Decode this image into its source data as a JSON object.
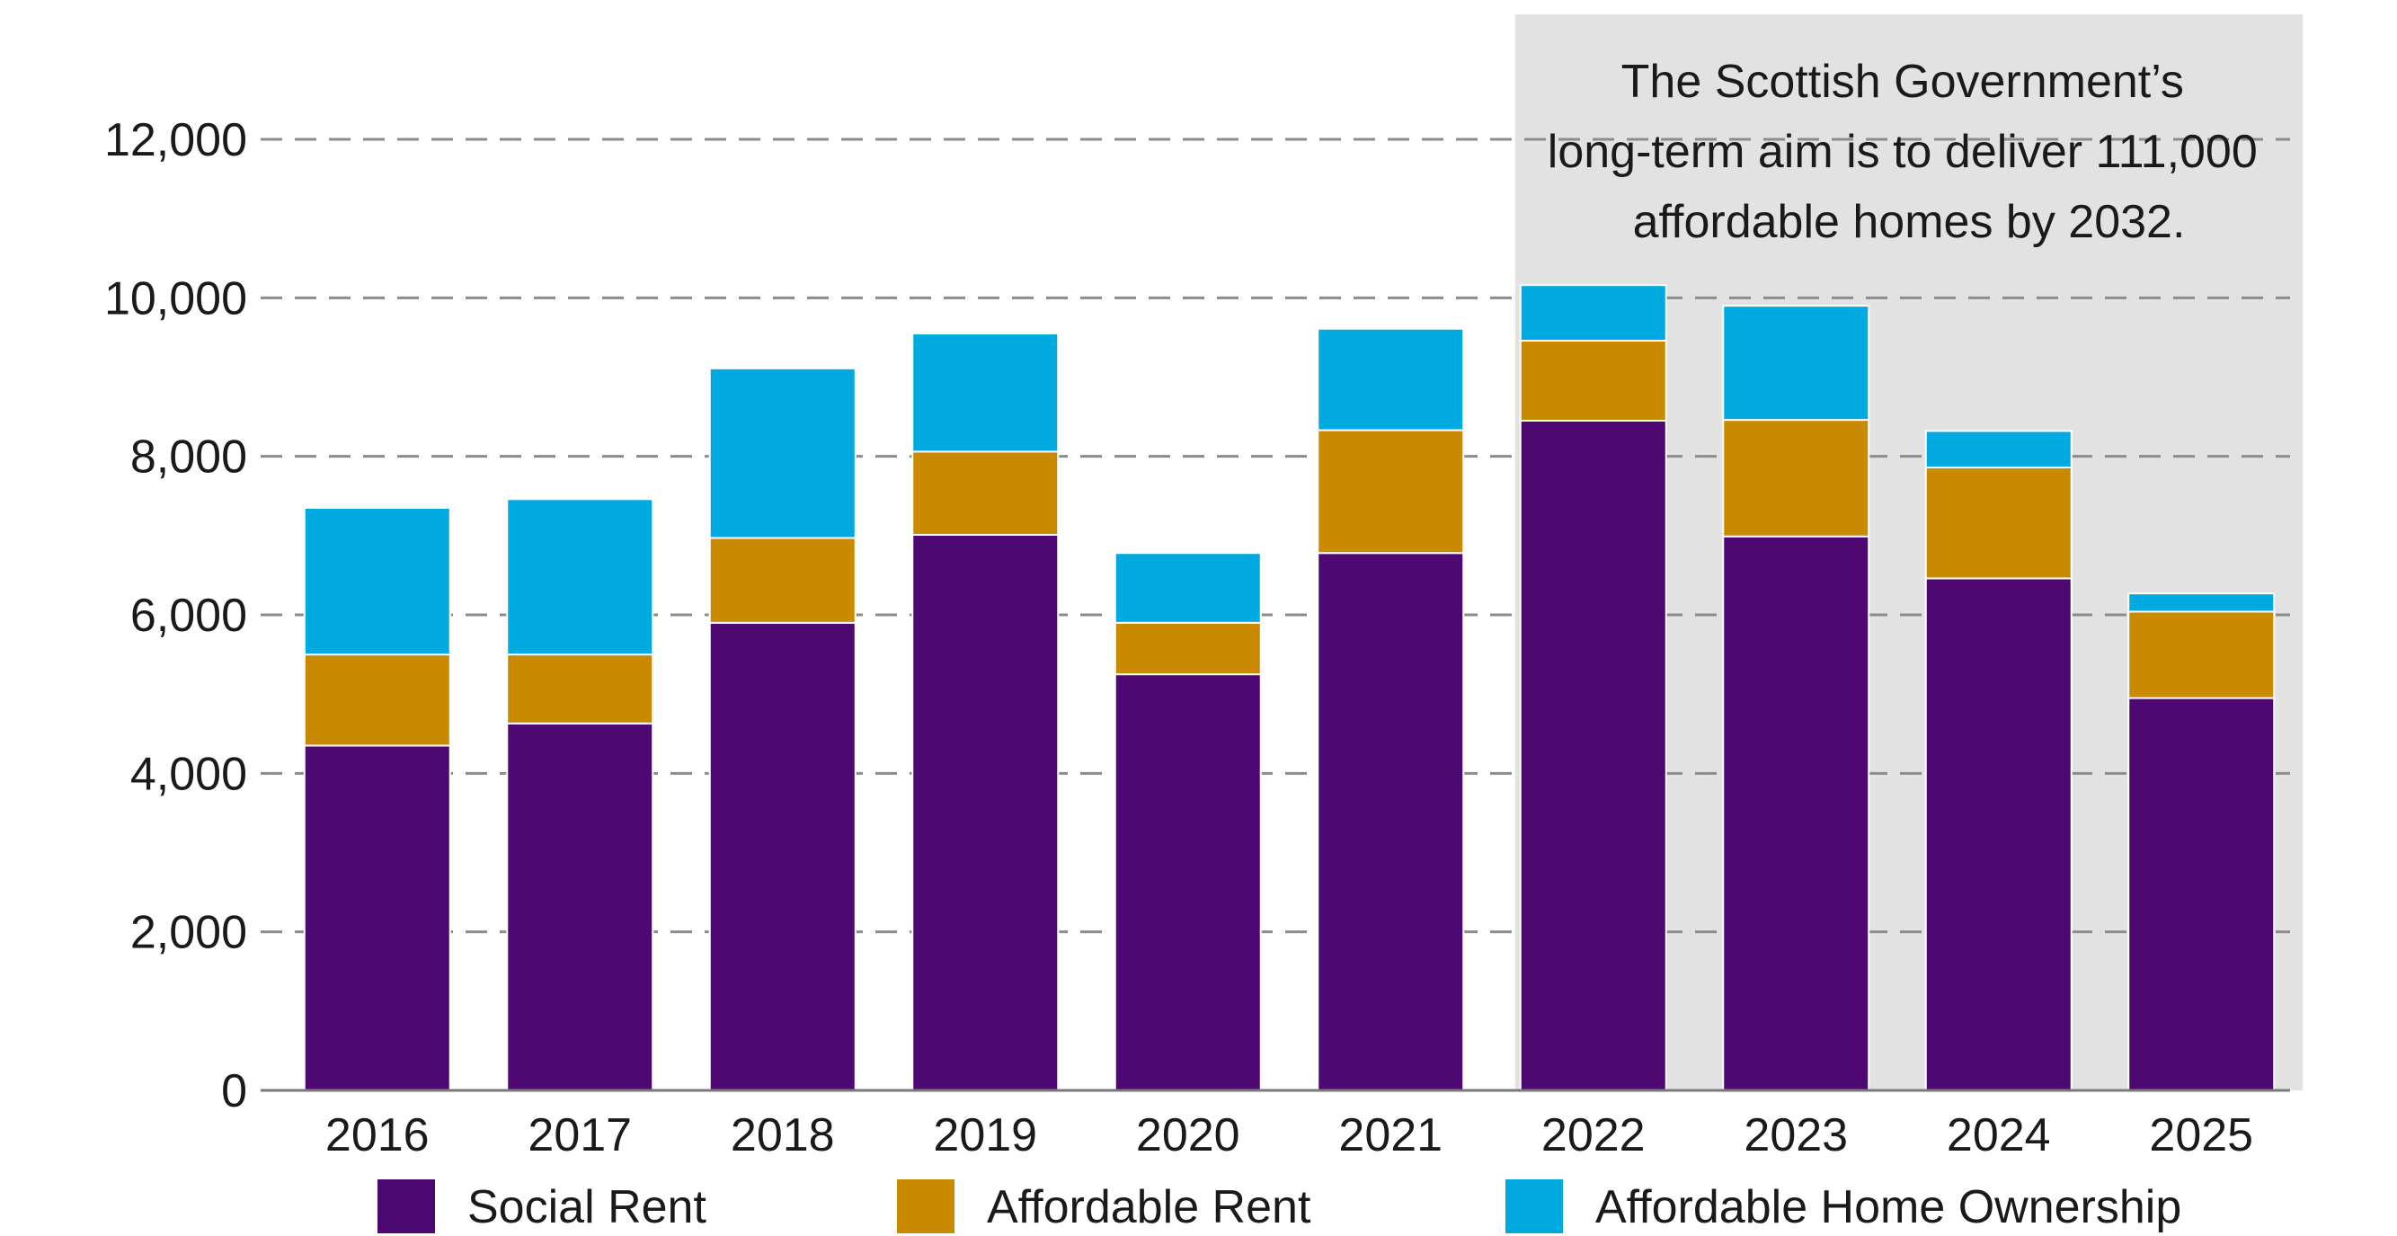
{
  "chart_data": {
    "type": "bar",
    "stacked": true,
    "categories": [
      "2016",
      "2017",
      "2018",
      "2019",
      "2020",
      "2021",
      "2022",
      "2023",
      "2024",
      "2025"
    ],
    "series": [
      {
        "name": "Social Rent",
        "color": "#4d0872",
        "values": [
          4350,
          4630,
          5900,
          7010,
          5250,
          6780,
          8450,
          6990,
          6460,
          4950
        ]
      },
      {
        "name": "Affordable Rent",
        "color": "#c98a00",
        "values": [
          1150,
          870,
          1070,
          1050,
          650,
          1550,
          1010,
          1470,
          1400,
          1090
        ]
      },
      {
        "name": "Affordable Home Ownership",
        "color": "#00a9e0",
        "values": [
          1850,
          1960,
          2140,
          1490,
          880,
          1280,
          700,
          1440,
          460,
          230
        ]
      }
    ],
    "ylim": [
      0,
      12000
    ],
    "yticks": [
      0,
      2000,
      4000,
      6000,
      8000,
      10000,
      12000
    ],
    "ytick_labels": [
      "0",
      "2,000",
      "4,000",
      "6,000",
      "8,000",
      "10,000",
      "12,000"
    ],
    "grid": "dashed horizontal",
    "legend_position": "bottom",
    "highlight": {
      "categories": [
        "2022",
        "2023",
        "2024",
        "2025"
      ],
      "color": "#e2e2e2",
      "annotation": [
        "The Scottish Government’s",
        "long-term aim is to deliver 111,000",
        "affordable homes by 2032."
      ]
    }
  }
}
